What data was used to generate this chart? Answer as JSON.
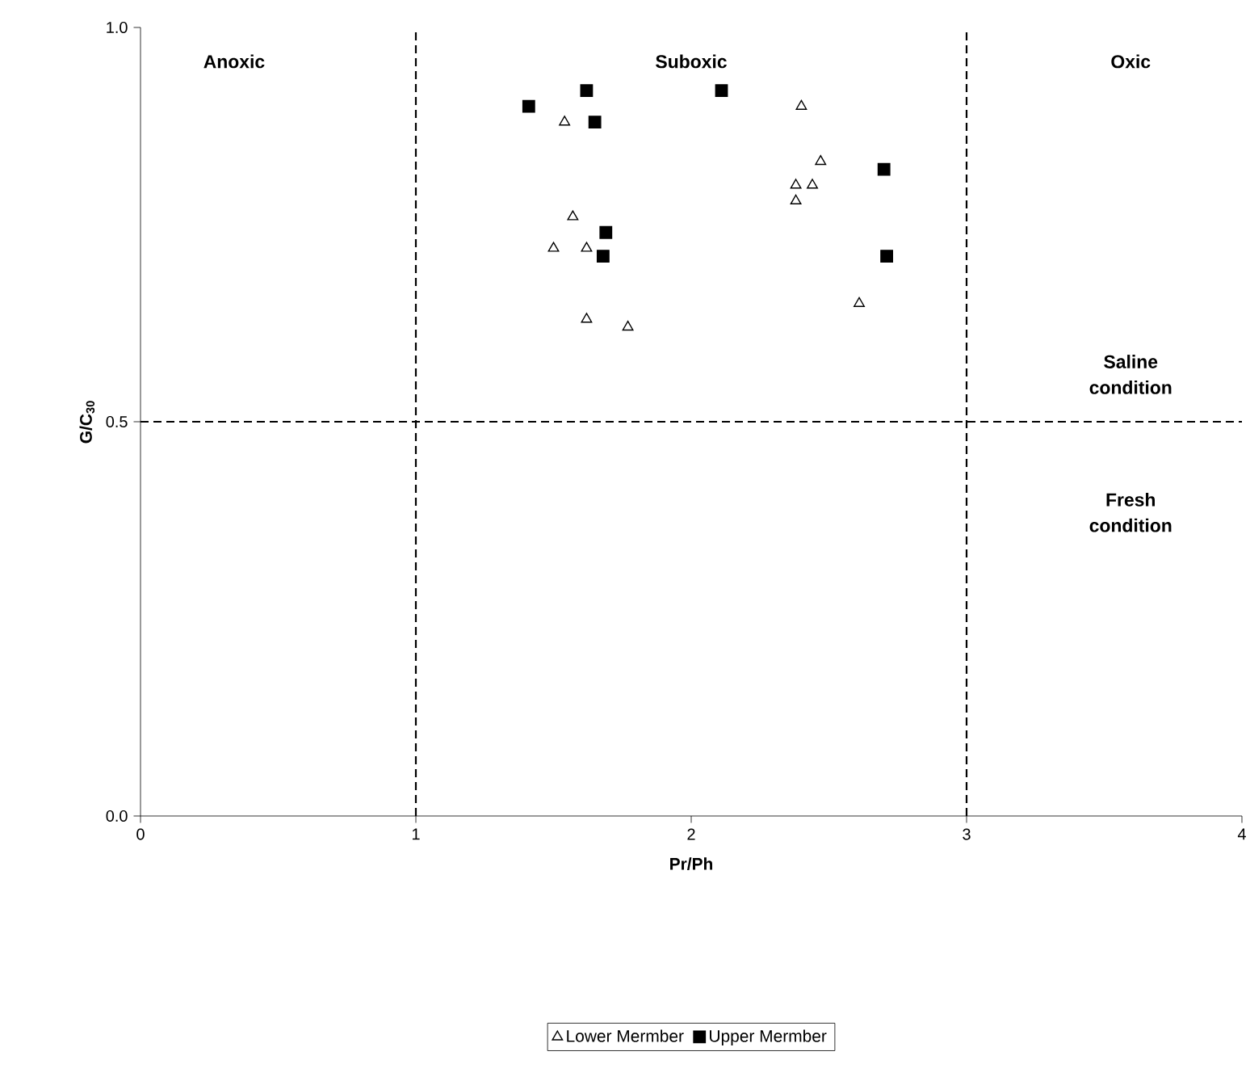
{
  "chart_data": {
    "type": "scatter",
    "xlabel": "Pr/Ph",
    "ylabel": "G/C$_{30}$",
    "xlim": [
      0,
      4
    ],
    "ylim": [
      0,
      1
    ],
    "xticks": [
      0,
      1,
      2,
      3,
      4
    ],
    "yticks": [
      {
        "value": 0,
        "label": "0.0"
      },
      {
        "value": 0.5,
        "label": "0.5"
      },
      {
        "value": 1,
        "label": "1.0"
      }
    ],
    "grid": false,
    "legend": "bottom",
    "ref_lines": [
      {
        "axis": "x",
        "value": 1,
        "color": "#000000",
        "line_style": "dashed"
      },
      {
        "axis": "x",
        "value": 3,
        "color": "#000000",
        "line_style": "dashed"
      },
      {
        "axis": "y",
        "value": 0.5,
        "color": "#000000",
        "line_style": "dashed"
      }
    ],
    "annotations": [
      "Anoxic",
      "Suboxic",
      "Oxic",
      "Saline condition",
      "Fresh condition"
    ],
    "series": [
      {
        "name": "Lower Mermber",
        "color": "#000000",
        "marker": "triangle",
        "x": [
          1.54,
          2.4,
          2.47,
          2.38,
          2.44,
          2.38,
          1.57,
          1.5,
          1.62,
          2.61,
          1.62,
          1.77
        ],
        "values": [
          0.88,
          0.9,
          0.83,
          0.8,
          0.8,
          0.78,
          0.76,
          0.72,
          0.72,
          0.65,
          0.63,
          0.62
        ]
      },
      {
        "name": "Upper Mermber",
        "color": "#000000",
        "marker": "square",
        "x": [
          1.41,
          1.62,
          1.65,
          2.11,
          2.7,
          1.69,
          1.68,
          2.71
        ],
        "values": [
          0.9,
          0.92,
          0.88,
          0.92,
          0.82,
          0.74,
          0.71,
          0.71
        ]
      }
    ]
  }
}
